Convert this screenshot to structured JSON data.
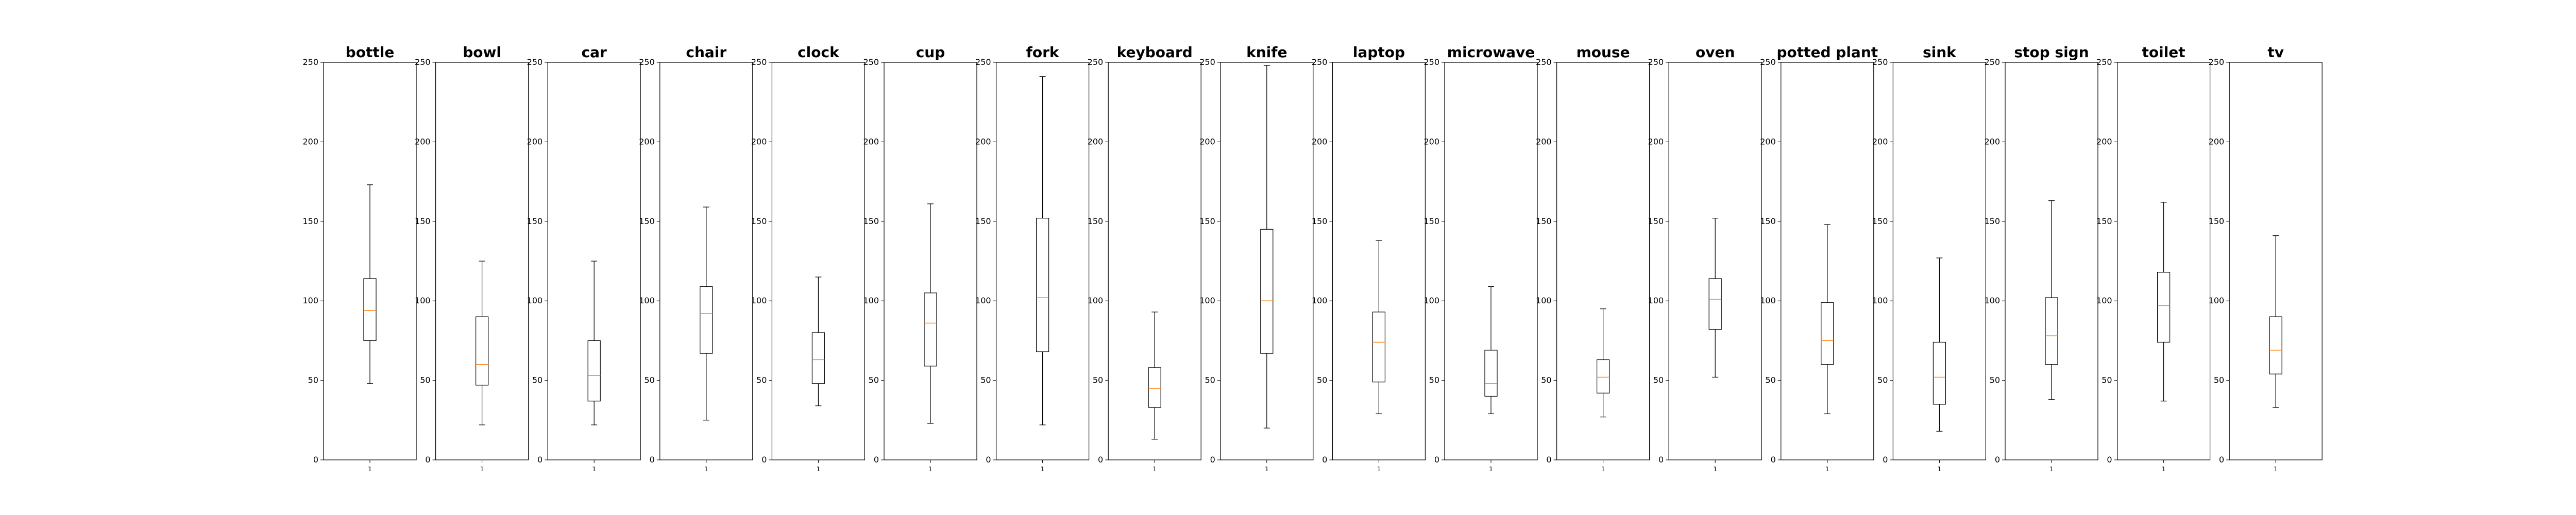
{
  "colors": {
    "median": "#ff7f0e",
    "box": "#000000",
    "frame": "#000000",
    "background": "#ffffff"
  },
  "chart_data": [
    {
      "type": "box",
      "title": "bottle",
      "xticks": [
        "1"
      ],
      "ylim": [
        0,
        250
      ],
      "yticks": [
        0,
        50,
        100,
        150,
        200,
        250
      ],
      "whislo": 48,
      "q1": 75,
      "med": 94,
      "q3": 114,
      "whishi": 173
    },
    {
      "type": "box",
      "title": "bowl",
      "xticks": [
        "1"
      ],
      "ylim": [
        0,
        250
      ],
      "yticks": [
        0,
        50,
        100,
        150,
        200,
        250
      ],
      "whislo": 22,
      "q1": 47,
      "med": 60,
      "q3": 90,
      "whishi": 125
    },
    {
      "type": "box",
      "title": "car",
      "xticks": [
        "1"
      ],
      "ylim": [
        0,
        250
      ],
      "yticks": [
        0,
        50,
        100,
        150,
        200,
        250
      ],
      "whislo": 22,
      "q1": 37,
      "med": 53,
      "q3": 75,
      "whishi": 125
    },
    {
      "type": "box",
      "title": "chair",
      "xticks": [
        "1"
      ],
      "ylim": [
        0,
        250
      ],
      "yticks": [
        0,
        50,
        100,
        150,
        200,
        250
      ],
      "whislo": 25,
      "q1": 67,
      "med": 92,
      "q3": 109,
      "whishi": 159
    },
    {
      "type": "box",
      "title": "clock",
      "xticks": [
        "1"
      ],
      "ylim": [
        0,
        250
      ],
      "yticks": [
        0,
        50,
        100,
        150,
        200,
        250
      ],
      "whislo": 34,
      "q1": 48,
      "med": 63,
      "q3": 80,
      "whishi": 115
    },
    {
      "type": "box",
      "title": "cup",
      "xticks": [
        "1"
      ],
      "ylim": [
        0,
        250
      ],
      "yticks": [
        0,
        50,
        100,
        150,
        200,
        250
      ],
      "whislo": 23,
      "q1": 59,
      "med": 86,
      "q3": 105,
      "whishi": 161
    },
    {
      "type": "box",
      "title": "fork",
      "xticks": [
        "1"
      ],
      "ylim": [
        0,
        250
      ],
      "yticks": [
        0,
        50,
        100,
        150,
        200,
        250
      ],
      "whislo": 22,
      "q1": 68,
      "med": 102,
      "q3": 152,
      "whishi": 241
    },
    {
      "type": "box",
      "title": "keyboard",
      "xticks": [
        "1"
      ],
      "ylim": [
        0,
        250
      ],
      "yticks": [
        0,
        50,
        100,
        150,
        200,
        250
      ],
      "whislo": 13,
      "q1": 33,
      "med": 45,
      "q3": 58,
      "whishi": 93
    },
    {
      "type": "box",
      "title": "knife",
      "xticks": [
        "1"
      ],
      "ylim": [
        0,
        250
      ],
      "yticks": [
        0,
        50,
        100,
        150,
        200,
        250
      ],
      "whislo": 20,
      "q1": 67,
      "med": 100,
      "q3": 145,
      "whishi": 248
    },
    {
      "type": "box",
      "title": "laptop",
      "xticks": [
        "1"
      ],
      "ylim": [
        0,
        250
      ],
      "yticks": [
        0,
        50,
        100,
        150,
        200,
        250
      ],
      "whislo": 29,
      "q1": 49,
      "med": 74,
      "q3": 93,
      "whishi": 138
    },
    {
      "type": "box",
      "title": "microwave",
      "xticks": [
        "1"
      ],
      "ylim": [
        0,
        250
      ],
      "yticks": [
        0,
        50,
        100,
        150,
        200,
        250
      ],
      "whislo": 29,
      "q1": 40,
      "med": 48,
      "q3": 69,
      "whishi": 109
    },
    {
      "type": "box",
      "title": "mouse",
      "xticks": [
        "1"
      ],
      "ylim": [
        0,
        250
      ],
      "yticks": [
        0,
        50,
        100,
        150,
        200,
        250
      ],
      "whislo": 27,
      "q1": 42,
      "med": 52,
      "q3": 63,
      "whishi": 95
    },
    {
      "type": "box",
      "title": "oven",
      "xticks": [
        "1"
      ],
      "ylim": [
        0,
        250
      ],
      "yticks": [
        0,
        50,
        100,
        150,
        200,
        250
      ],
      "whislo": 52,
      "q1": 82,
      "med": 101,
      "q3": 114,
      "whishi": 152
    },
    {
      "type": "box",
      "title": "potted plant",
      "xticks": [
        "1"
      ],
      "ylim": [
        0,
        250
      ],
      "yticks": [
        0,
        50,
        100,
        150,
        200,
        250
      ],
      "whislo": 29,
      "q1": 60,
      "med": 75,
      "q3": 99,
      "whishi": 148
    },
    {
      "type": "box",
      "title": "sink",
      "xticks": [
        "1"
      ],
      "ylim": [
        0,
        250
      ],
      "yticks": [
        0,
        50,
        100,
        150,
        200,
        250
      ],
      "whislo": 18,
      "q1": 35,
      "med": 52,
      "q3": 74,
      "whishi": 127
    },
    {
      "type": "box",
      "title": "stop sign",
      "xticks": [
        "1"
      ],
      "ylim": [
        0,
        250
      ],
      "yticks": [
        0,
        50,
        100,
        150,
        200,
        250
      ],
      "whislo": 38,
      "q1": 60,
      "med": 78,
      "q3": 102,
      "whishi": 163
    },
    {
      "type": "box",
      "title": "toilet",
      "xticks": [
        "1"
      ],
      "ylim": [
        0,
        250
      ],
      "yticks": [
        0,
        50,
        100,
        150,
        200,
        250
      ],
      "whislo": 37,
      "q1": 74,
      "med": 97,
      "q3": 118,
      "whishi": 162
    },
    {
      "type": "box",
      "title": "tv",
      "xticks": [
        "1"
      ],
      "ylim": [
        0,
        250
      ],
      "yticks": [
        0,
        50,
        100,
        150,
        200,
        250
      ],
      "whislo": 33,
      "q1": 54,
      "med": 69,
      "q3": 90,
      "whishi": 141
    }
  ]
}
